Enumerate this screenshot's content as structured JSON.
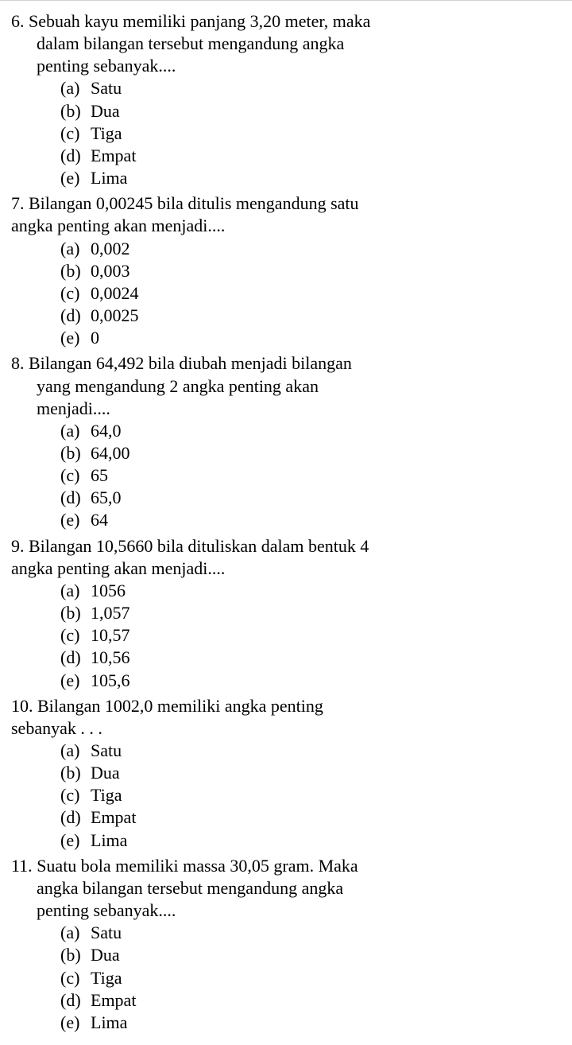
{
  "questions": [
    {
      "number": "6.",
      "lines": [
        "Sebuah kayu memiliki panjang 3,20 meter, maka",
        "dalam bilangan tersebut mengandung angka",
        "penting sebanyak...."
      ],
      "indented": true,
      "options": [
        {
          "label": "(a)",
          "text": "Satu"
        },
        {
          "label": "(b)",
          "text": "Dua"
        },
        {
          "label": "(c)",
          "text": "Tiga"
        },
        {
          "label": "(d)",
          "text": "Empat"
        },
        {
          "label": "(e)",
          "text": "Lima"
        }
      ]
    },
    {
      "number": "7.",
      "lines": [
        "Bilangan 0,00245 bila ditulis mengandung satu",
        "angka penting akan menjadi...."
      ],
      "indented": false,
      "options": [
        {
          "label": "(a)",
          "text": "0,002"
        },
        {
          "label": "(b)",
          "text": "0,003"
        },
        {
          "label": "(c)",
          "text": "0,0024"
        },
        {
          "label": "(d)",
          "text": "0,0025"
        },
        {
          "label": "(e)",
          "text": "0"
        }
      ]
    },
    {
      "number": "8.",
      "lines": [
        "Bilangan 64,492 bila diubah menjadi bilangan",
        "yang mengandung 2 angka penting akan",
        "menjadi...."
      ],
      "indented": true,
      "options": [
        {
          "label": "(a)",
          "text": "64,0"
        },
        {
          "label": "(b)",
          "text": "64,00"
        },
        {
          "label": "(c)",
          "text": "65"
        },
        {
          "label": "(d)",
          "text": "65,0"
        },
        {
          "label": "(e)",
          "text": "64"
        }
      ]
    },
    {
      "number": "9.",
      "lines": [
        "Bilangan 10,5660 bila dituliskan dalam bentuk 4",
        "angka penting akan menjadi...."
      ],
      "indented": false,
      "options": [
        {
          "label": "(a)",
          "text": "1056"
        },
        {
          "label": "(b)",
          "text": "1,057"
        },
        {
          "label": "(c)",
          "text": "10,57"
        },
        {
          "label": "(d)",
          "text": "10,56"
        },
        {
          "label": "(e)",
          "text": "105,6"
        }
      ]
    },
    {
      "number": "10.",
      "lines": [
        "Bilangan 1002,0 memiliki angka penting",
        "sebanyak . . ."
      ],
      "indented": false,
      "options": [
        {
          "label": "(a)",
          "text": "Satu"
        },
        {
          "label": "(b)",
          "text": "Dua"
        },
        {
          "label": "(c)",
          "text": "Tiga"
        },
        {
          "label": "(d)",
          "text": "Empat"
        },
        {
          "label": "(e)",
          "text": "Lima"
        }
      ]
    },
    {
      "number": "11.",
      "lines": [
        "Suatu bola memiliki massa 30,05 gram. Maka",
        "angka bilangan tersebut mengandung angka",
        "penting sebanyak...."
      ],
      "indented": true,
      "options": [
        {
          "label": "(a)",
          "text": "Satu"
        },
        {
          "label": "(b)",
          "text": "Dua"
        },
        {
          "label": "(c)",
          "text": "Tiga"
        },
        {
          "label": "(d)",
          "text": "Empat"
        },
        {
          "label": "(e)",
          "text": "Lima"
        }
      ]
    }
  ]
}
